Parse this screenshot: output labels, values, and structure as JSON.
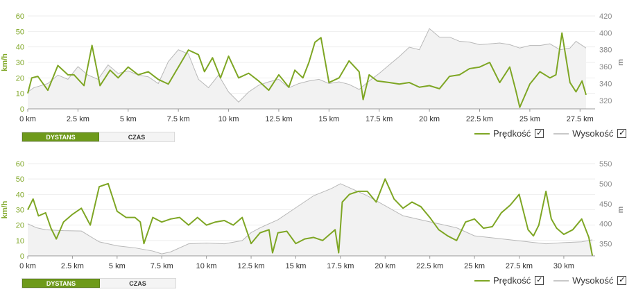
{
  "chart_data": [
    {
      "type": "line",
      "x_unit_label": "km",
      "ylabel": "km/h",
      "ylabel_right": "m",
      "ylim": [
        0,
        60
      ],
      "ylim_right": [
        310,
        420
      ],
      "yticks": [
        "0",
        "10",
        "20",
        "30",
        "40",
        "50",
        "60"
      ],
      "yticks_right": [
        "320",
        "340",
        "360",
        "380",
        "400",
        "420"
      ],
      "xlim": [
        0,
        28.25
      ],
      "xticks": [
        "0 km",
        "2.5 km",
        "5 km",
        "7.5 km",
        "10 km",
        "12.5 km",
        "15 km",
        "17.5 km",
        "20 km",
        "22.5 km",
        "25 km",
        "27.5 km"
      ],
      "series": [
        {
          "name": "Prędkość",
          "axis": "left",
          "color": "#7ea624",
          "x": [
            0,
            0.2,
            0.5,
            1,
            1.5,
            2,
            2.3,
            2.8,
            3.2,
            3.6,
            4.1,
            4.5,
            5,
            5.5,
            6,
            6.5,
            7,
            7.5,
            8,
            8.5,
            8.8,
            9.2,
            9.6,
            10,
            10.5,
            11,
            11.5,
            12,
            12.5,
            13,
            13.3,
            13.7,
            14,
            14.3,
            14.6,
            15,
            15.5,
            16,
            16.5,
            16.7,
            17,
            17.4,
            18,
            18.5,
            19,
            19.5,
            20,
            20.5,
            21,
            21.5,
            22,
            22.5,
            23,
            23.5,
            24,
            24.3,
            24.5,
            25,
            25.5,
            26,
            26.3,
            26.6,
            27,
            27.3,
            27.6,
            27.8
          ],
          "values": [
            10,
            20,
            21,
            12,
            28,
            22,
            22,
            15,
            41,
            15,
            25,
            20,
            27,
            22,
            24,
            19,
            16,
            27,
            38,
            35,
            24,
            33,
            20,
            34,
            20,
            23,
            18,
            12,
            22,
            14,
            25,
            20,
            30,
            43,
            46,
            17,
            20,
            31,
            24,
            6,
            22,
            18,
            17,
            16,
            17,
            14,
            15,
            13,
            21,
            22,
            26,
            27,
            30,
            17,
            27,
            12,
            1,
            16,
            24,
            20,
            22,
            49,
            17,
            11,
            18,
            9
          ]
        },
        {
          "name": "Wysokość",
          "axis": "right",
          "color": "#b8b8b8",
          "x": [
            0,
            0.3,
            1,
            1.5,
            2,
            2.5,
            3,
            3.5,
            4,
            4.5,
            5,
            5.5,
            6,
            6.5,
            7,
            7.5,
            8,
            8.5,
            9,
            9.5,
            10,
            10.5,
            11,
            11.5,
            12,
            12.5,
            13,
            13.5,
            14,
            14.5,
            15,
            15.5,
            16,
            16.5,
            17,
            17.5,
            18,
            18.5,
            19,
            19.5,
            20,
            20.5,
            21,
            21.5,
            22,
            22.5,
            23,
            23.5,
            24,
            24.5,
            25,
            25.5,
            26,
            26.5,
            27,
            27.3,
            27.8
          ],
          "values": [
            330,
            335,
            340,
            350,
            345,
            360,
            350,
            345,
            362,
            352,
            355,
            350,
            348,
            340,
            366,
            380,
            375,
            345,
            335,
            350,
            330,
            318,
            330,
            338,
            342,
            345,
            335,
            340,
            343,
            345,
            340,
            342,
            339,
            333,
            343,
            352,
            362,
            372,
            383,
            380,
            405,
            395,
            395,
            390,
            389,
            386,
            387,
            388,
            386,
            382,
            385,
            385,
            387,
            380,
            382,
            390,
            382
          ]
        }
      ]
    },
    {
      "type": "line",
      "x_unit_label": "km",
      "ylabel": "km/h",
      "ylabel_right": "m",
      "ylim": [
        0,
        60
      ],
      "ylim_right": [
        320,
        550
      ],
      "yticks": [
        "0",
        "10",
        "20",
        "30",
        "40",
        "50",
        "60"
      ],
      "yticks_right": [
        "350",
        "400",
        "450",
        "500",
        "550"
      ],
      "xlim": [
        0,
        31.75
      ],
      "xticks": [
        "0 km",
        "2.5 km",
        "5 km",
        "7.5 km",
        "10 km",
        "12.5 km",
        "15 km",
        "17.5 km",
        "20 km",
        "22.5 km",
        "25 km",
        "27.5 km",
        "30 km"
      ],
      "series": [
        {
          "name": "Prędkość",
          "axis": "left",
          "color": "#7ea624",
          "x": [
            0,
            0.3,
            0.6,
            1,
            1.3,
            1.6,
            2,
            2.5,
            3,
            3.5,
            4,
            4.5,
            5,
            5.5,
            6,
            6.3,
            6.5,
            7,
            7.5,
            8,
            8.5,
            9,
            9.5,
            10,
            10.5,
            11,
            11.5,
            12,
            12.5,
            13,
            13.5,
            13.7,
            14,
            14.5,
            15,
            15.5,
            16,
            16.5,
            17,
            17.2,
            17.4,
            17.6,
            18,
            18.5,
            19,
            19.5,
            20,
            20.5,
            21,
            21.5,
            22,
            22.5,
            23,
            23.5,
            24,
            24.5,
            25,
            25.5,
            26,
            26.5,
            27,
            27.5,
            28,
            28.3,
            28.6,
            29,
            29.3,
            29.6,
            30,
            30.5,
            31,
            31.4,
            31.6
          ],
          "values": [
            30,
            37,
            26,
            28,
            18,
            11,
            22,
            27,
            31,
            20,
            45,
            47,
            29,
            25,
            25,
            22,
            8,
            25,
            22,
            24,
            25,
            20,
            25,
            20,
            22,
            23,
            20,
            25,
            8,
            15,
            17,
            2,
            15,
            16,
            8,
            11,
            12,
            10,
            15,
            17,
            2,
            35,
            40,
            42,
            42,
            35,
            50,
            37,
            31,
            35,
            32,
            25,
            17,
            13,
            10,
            22,
            24,
            18,
            19,
            28,
            33,
            40,
            17,
            13,
            20,
            42,
            24,
            18,
            14,
            17,
            24,
            12,
            0
          ]
        },
        {
          "name": "Wysokość",
          "axis": "right",
          "color": "#b8b8b8",
          "x": [
            0,
            0.5,
            1,
            2,
            3,
            4,
            5,
            6,
            7,
            7.5,
            8,
            9,
            10,
            11,
            12,
            12.5,
            13,
            14,
            15,
            16,
            17,
            17.5,
            18,
            19,
            20,
            21,
            22,
            23,
            24,
            25,
            26,
            27,
            28,
            29,
            30,
            31,
            31.6
          ],
          "values": [
            400,
            390,
            385,
            383,
            382,
            355,
            345,
            340,
            332,
            325,
            330,
            350,
            352,
            350,
            358,
            378,
            390,
            410,
            440,
            470,
            488,
            500,
            490,
            470,
            445,
            420,
            410,
            400,
            390,
            370,
            365,
            360,
            355,
            350,
            353,
            355,
            360
          ]
        }
      ]
    }
  ],
  "controls": [
    {
      "tab_distance": "DYSTANS",
      "tab_time": "CZAS"
    },
    {
      "tab_distance": "DYSTANS",
      "tab_time": "CZAS"
    }
  ],
  "legends": [
    {
      "speed": "Prędkość",
      "altitude": "Wysokość",
      "check": "✓"
    },
    {
      "speed": "Prędkość",
      "altitude": "Wysokość",
      "check": "✓"
    }
  ]
}
